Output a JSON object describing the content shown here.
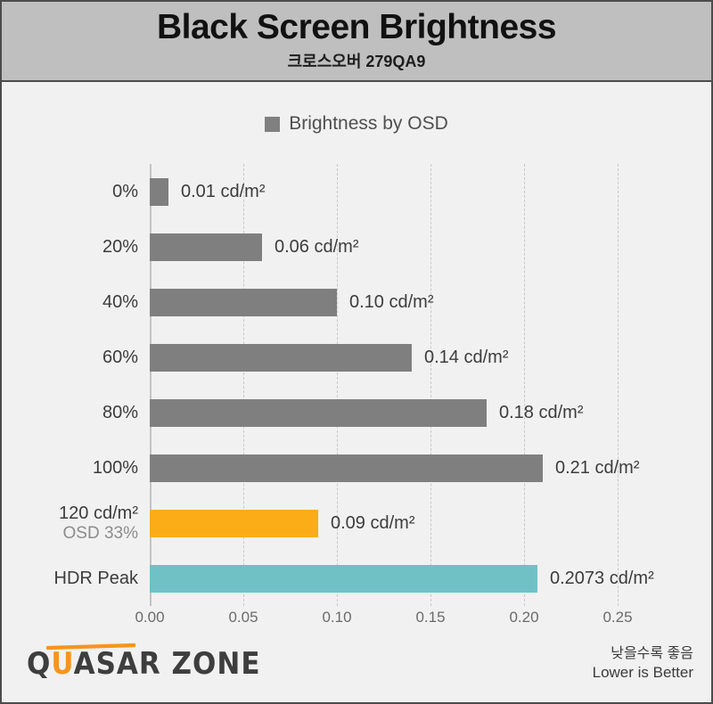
{
  "header": {
    "title": "Black Screen Brightness",
    "subtitle": "크로스오버 279QA9"
  },
  "legend": {
    "label": "Brightness by OSD",
    "swatch_color": "#808080"
  },
  "chart_data": {
    "type": "bar",
    "orientation": "horizontal",
    "title": "Black Screen Brightness",
    "subtitle": "크로스오버 279QA9",
    "legend_entries": [
      "Brightness by OSD"
    ],
    "legend_position": "top-center",
    "unit": "cd/m²",
    "xlim": [
      0,
      0.25
    ],
    "x_ticks": [
      "0.00",
      "0.05",
      "0.10",
      "0.15",
      "0.20",
      "0.25"
    ],
    "grid": "dashed-vertical",
    "categories": [
      "0%",
      "20%",
      "40%",
      "60%",
      "80%",
      "100%",
      "120 cd/m² OSD 33%",
      "HDR Peak"
    ],
    "rows": [
      {
        "label": "0%",
        "sub": "",
        "value": 0.01,
        "value_label": "0.01 cd/m²",
        "color": "#7f7f7f"
      },
      {
        "label": "20%",
        "sub": "",
        "value": 0.06,
        "value_label": "0.06 cd/m²",
        "color": "#7f7f7f"
      },
      {
        "label": "40%",
        "sub": "",
        "value": 0.1,
        "value_label": "0.10 cd/m²",
        "color": "#7f7f7f"
      },
      {
        "label": "60%",
        "sub": "",
        "value": 0.14,
        "value_label": "0.14 cd/m²",
        "color": "#7f7f7f"
      },
      {
        "label": "80%",
        "sub": "",
        "value": 0.18,
        "value_label": "0.18 cd/m²",
        "color": "#7f7f7f"
      },
      {
        "label": "100%",
        "sub": "",
        "value": 0.21,
        "value_label": "0.21 cd/m²",
        "color": "#7f7f7f"
      },
      {
        "label": "120 cd/m²",
        "sub": "OSD 33%",
        "value": 0.09,
        "value_label": "0.09 cd/m²",
        "color": "#fbad18"
      },
      {
        "label": "HDR Peak",
        "sub": "",
        "value": 0.2073,
        "value_label": "0.2073 cd/m²",
        "color": "#70c1c6"
      }
    ]
  },
  "footer": {
    "logo": {
      "part_q": "Q",
      "part_u": "U",
      "part_rest": "ASAR ZONE"
    },
    "note_korean": "낮을수록 좋음",
    "note_english": "Lower is Better"
  },
  "colors": {
    "page_bg": "#f1f1f1",
    "header_bg": "#bfbfbf",
    "frame_border": "#4c4c4c",
    "bar_gray": "#7f7f7f",
    "bar_orange": "#fbad18",
    "bar_teal": "#70c1c6",
    "logo_accent": "#f7941d",
    "text_dark": "#3c3c3c",
    "text_sub": "#8c8c8c",
    "tick_text": "#6b6b6b",
    "legend_text": "#4f4f4f",
    "grid_color": "#c9c9c9"
  }
}
